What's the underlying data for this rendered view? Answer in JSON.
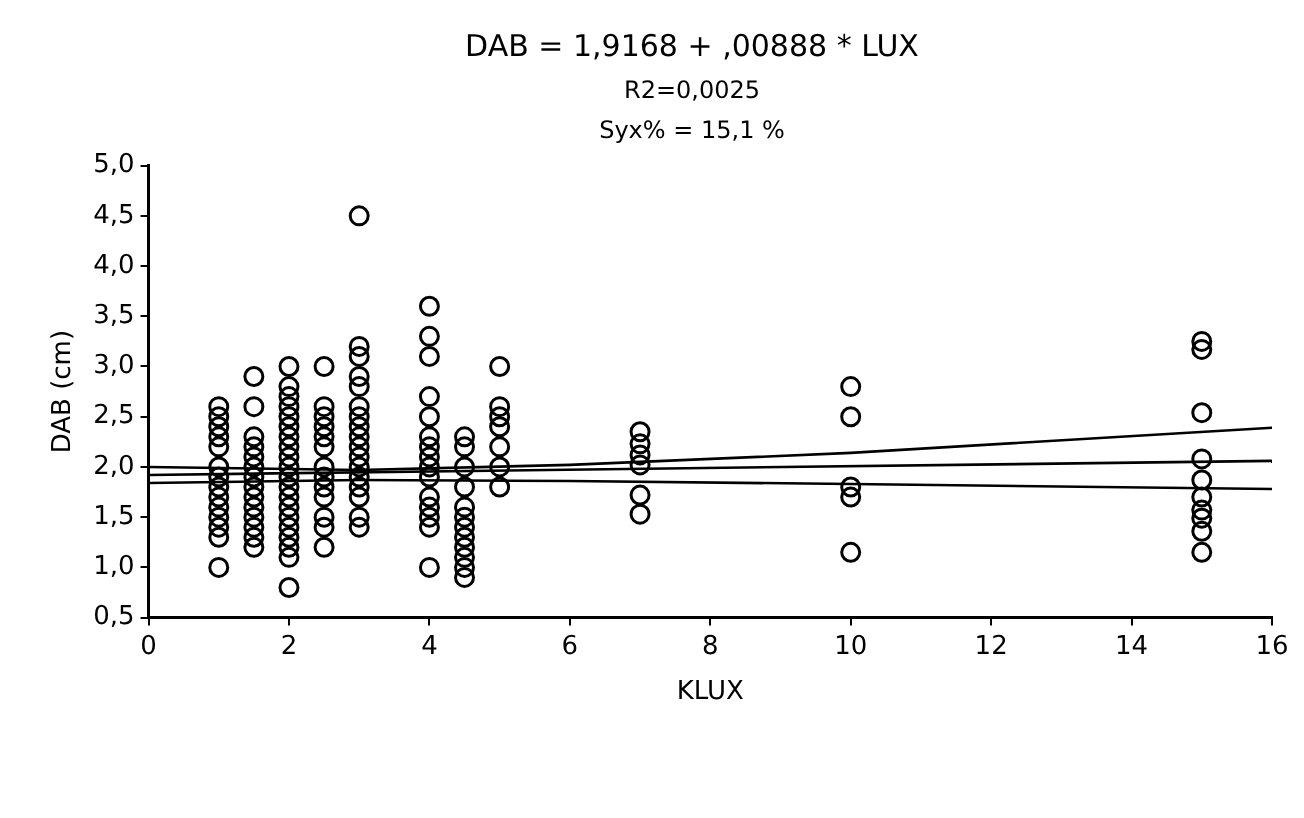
{
  "chart_data": {
    "type": "scatter",
    "title": "DAB = 1,9168 + ,00888 * LUX",
    "subtitle": "R2=0,0025",
    "annotations": [
      "Syx% = 15,1 %"
    ],
    "xlabel": "KLUX",
    "ylabel": "DAB (cm)",
    "xlim": [
      0,
      16
    ],
    "xticks": [
      0,
      2,
      4,
      6,
      8,
      10,
      12,
      14,
      16
    ],
    "ylim": [
      0.5,
      5.0
    ],
    "yticks": [
      {
        "value": 0.5,
        "label": "0,5"
      },
      {
        "value": 1.0,
        "label": "1,0"
      },
      {
        "value": 1.5,
        "label": "1,5"
      },
      {
        "value": 2.0,
        "label": "2,0"
      },
      {
        "value": 2.5,
        "label": "2,5"
      },
      {
        "value": 3.0,
        "label": "3,0"
      },
      {
        "value": 3.5,
        "label": "3,5"
      },
      {
        "value": 4.0,
        "label": "4,0"
      },
      {
        "value": 4.5,
        "label": "4,5"
      },
      {
        "value": 5.0,
        "label": "5,0"
      }
    ],
    "grid": false,
    "legend": false,
    "series": [
      {
        "color": "#000000",
        "marker": "circle",
        "x": [
          1,
          1,
          1,
          1,
          1,
          1,
          1,
          1,
          1,
          1,
          1,
          1,
          1,
          1,
          1.5,
          1.5,
          1.5,
          1.5,
          1.5,
          1.5,
          1.5,
          1.5,
          1.5,
          1.5,
          1.5,
          1.5,
          1.5,
          1.5,
          2,
          2,
          2,
          2,
          2,
          2,
          2,
          2,
          2,
          2,
          2,
          2,
          2,
          2,
          2,
          2,
          2,
          2,
          2,
          2,
          2.5,
          2.5,
          2.5,
          2.5,
          2.5,
          2.5,
          2.5,
          2.5,
          2.5,
          2.5,
          2.5,
          2.5,
          2.5,
          3,
          3,
          3,
          3,
          3,
          3,
          3,
          3,
          3,
          3,
          3,
          3,
          3,
          3,
          3,
          3,
          3,
          4,
          4,
          4,
          4,
          4,
          4,
          4,
          4,
          4,
          4,
          4,
          4,
          4,
          4,
          4,
          4.5,
          4.5,
          4.5,
          4.5,
          4.5,
          4.5,
          4.5,
          4.5,
          4.5,
          4.5,
          4.5,
          4.5,
          5,
          5,
          5,
          5,
          5,
          5,
          5,
          7,
          7,
          7,
          7,
          7,
          7,
          10,
          10,
          10,
          10,
          10,
          15,
          15,
          15,
          15,
          15,
          15,
          15,
          15,
          15,
          15
        ],
        "values": [
          2.6,
          2.5,
          2.4,
          2.3,
          2.2,
          2.0,
          1.9,
          1.8,
          1.7,
          1.6,
          1.5,
          1.4,
          1.3,
          1.0,
          2.9,
          2.6,
          2.3,
          2.2,
          2.1,
          2.0,
          1.9,
          1.8,
          1.7,
          1.6,
          1.5,
          1.4,
          1.3,
          1.2,
          3.0,
          2.8,
          2.7,
          2.6,
          2.5,
          2.4,
          2.3,
          2.2,
          2.1,
          2.0,
          1.9,
          1.8,
          1.7,
          1.6,
          1.5,
          1.4,
          1.3,
          1.2,
          1.1,
          0.8,
          3.0,
          2.6,
          2.5,
          2.4,
          2.3,
          2.2,
          2.0,
          1.9,
          1.8,
          1.7,
          1.5,
          1.4,
          1.2,
          4.5,
          3.2,
          3.1,
          2.9,
          2.8,
          2.6,
          2.5,
          2.4,
          2.3,
          2.2,
          2.1,
          2.0,
          1.9,
          1.8,
          1.7,
          1.5,
          1.4,
          3.6,
          3.3,
          3.1,
          2.7,
          2.5,
          2.3,
          2.2,
          2.1,
          2.0,
          1.9,
          1.7,
          1.6,
          1.5,
          1.4,
          1.0,
          2.3,
          2.2,
          2.0,
          1.8,
          1.6,
          1.5,
          1.4,
          1.3,
          1.2,
          1.1,
          1.0,
          0.9,
          3.0,
          2.6,
          2.5,
          2.4,
          2.2,
          2.0,
          1.8,
          2.35,
          2.23,
          2.12,
          2.02,
          1.72,
          1.53,
          2.8,
          2.5,
          1.8,
          1.7,
          1.15,
          3.25,
          3.17,
          2.54,
          2.08,
          1.87,
          1.7,
          1.57,
          1.49,
          1.36,
          1.15
        ]
      },
      {
        "type": "line",
        "color": "#000000",
        "marker": "none",
        "x": [
          0,
          16
        ],
        "values": [
          1.92,
          2.06
        ]
      },
      {
        "type": "line",
        "color": "#000000",
        "marker": "none",
        "x": [
          0,
          3,
          6,
          10,
          16
        ],
        "values": [
          2.0,
          1.97,
          2.02,
          2.14,
          2.39
        ]
      },
      {
        "type": "line",
        "color": "#000000",
        "marker": "none",
        "x": [
          0,
          3,
          6,
          10,
          16
        ],
        "values": [
          1.84,
          1.87,
          1.86,
          1.83,
          1.78
        ]
      }
    ]
  }
}
